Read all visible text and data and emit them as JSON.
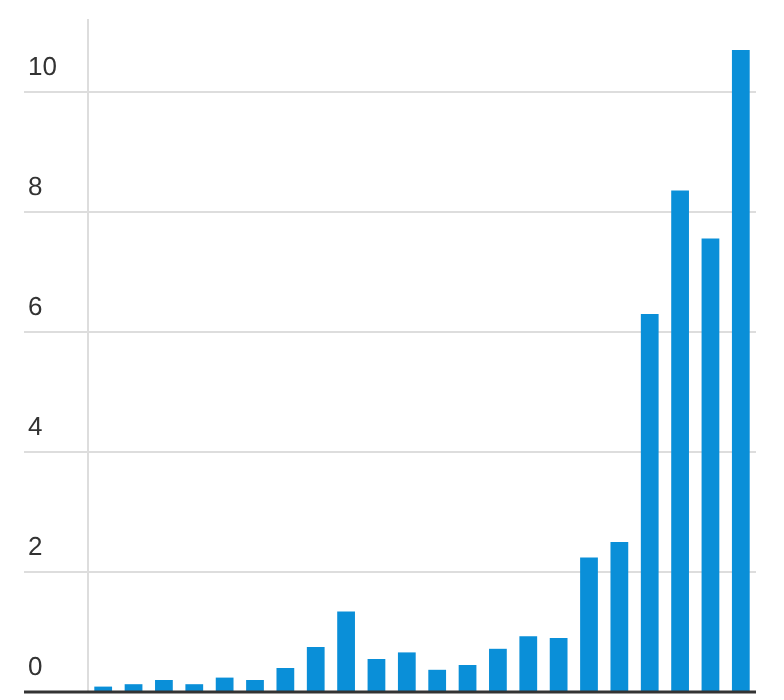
{
  "chart_data": {
    "type": "bar",
    "categories": [
      null,
      null,
      null,
      null,
      null,
      null,
      null,
      null,
      null,
      null,
      null,
      null,
      null,
      null,
      null,
      null,
      null,
      null,
      null,
      null,
      null,
      null
    ],
    "values": [
      0.09,
      0.13,
      0.2,
      0.13,
      0.24,
      0.2,
      0.4,
      0.75,
      1.34,
      0.55,
      0.66,
      0.37,
      0.45,
      0.72,
      0.93,
      0.9,
      2.24,
      2.5,
      6.3,
      8.36,
      7.56,
      10.7
    ],
    "color": "#0a8fd8",
    "ylim": [
      0,
      11.2
    ],
    "yticks": [
      0,
      2,
      4,
      6,
      8,
      10
    ],
    "grid": "y",
    "legend": false
  }
}
